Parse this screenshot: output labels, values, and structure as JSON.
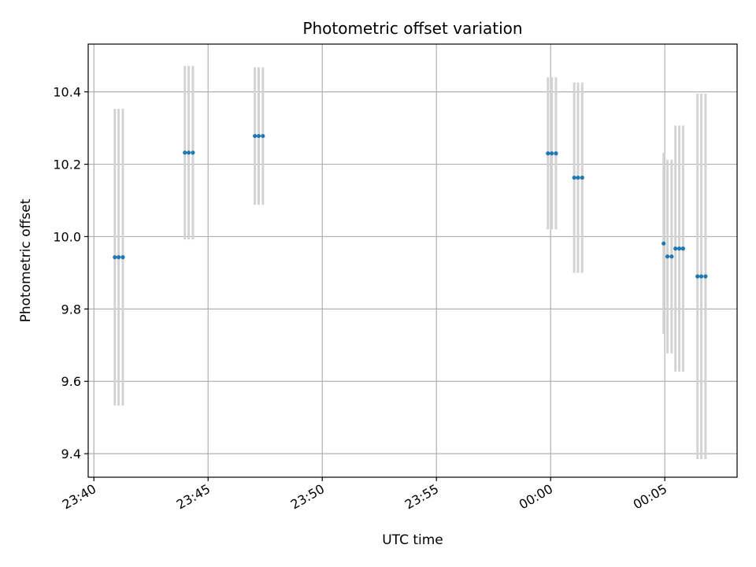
{
  "chart_data": {
    "type": "scatter",
    "title": "Photometric offset variation",
    "xlabel": "UTC time",
    "ylabel": "Photometric offset",
    "x_is_time": true,
    "xlim": [
      "23:39:45",
      "00:08:10"
    ],
    "ylim": [
      9.335,
      10.532
    ],
    "grid": true,
    "colors": {
      "point": "#1f77b4",
      "errorbar": "#d3d3d3",
      "grid": "#b0b0b0",
      "axes": "#000000"
    },
    "x_ticks": [
      {
        "time": "23:40:00",
        "label": "23:40"
      },
      {
        "time": "23:45:00",
        "label": "23:45"
      },
      {
        "time": "23:50:00",
        "label": "23:50"
      },
      {
        "time": "23:55:00",
        "label": "23:55"
      },
      {
        "time": "00:00:00",
        "label": "00:00"
      },
      {
        "time": "00:05:00",
        "label": "00:05"
      }
    ],
    "y_ticks": [
      {
        "value": 9.4,
        "label": "9.4"
      },
      {
        "value": 9.6,
        "label": "9.6"
      },
      {
        "value": 9.8,
        "label": "9.8"
      },
      {
        "value": 10.0,
        "label": "10.0"
      },
      {
        "value": 10.2,
        "label": "10.2"
      },
      {
        "value": 10.4,
        "label": "10.4"
      }
    ],
    "points": [
      {
        "t": "23:40:55",
        "y": 9.943,
        "err": 0.41
      },
      {
        "t": "23:41:05",
        "y": 9.943,
        "err": 0.41
      },
      {
        "t": "23:41:16",
        "y": 9.943,
        "err": 0.41
      },
      {
        "t": "23:43:59",
        "y": 10.232,
        "err": 0.24
      },
      {
        "t": "23:44:09",
        "y": 10.232,
        "err": 0.24
      },
      {
        "t": "23:44:20",
        "y": 10.232,
        "err": 0.24
      },
      {
        "t": "23:47:03",
        "y": 10.278,
        "err": 0.19
      },
      {
        "t": "23:47:13",
        "y": 10.278,
        "err": 0.19
      },
      {
        "t": "23:47:24",
        "y": 10.278,
        "err": 0.19
      },
      {
        "t": "23:59:53",
        "y": 10.23,
        "err": 0.21
      },
      {
        "t": "00:00:03",
        "y": 10.23,
        "err": 0.21
      },
      {
        "t": "00:00:14",
        "y": 10.23,
        "err": 0.21
      },
      {
        "t": "00:01:02",
        "y": 10.163,
        "err": 0.263
      },
      {
        "t": "00:01:12",
        "y": 10.163,
        "err": 0.263
      },
      {
        "t": "00:01:23",
        "y": 10.163,
        "err": 0.263
      },
      {
        "t": "00:04:57",
        "y": 9.981,
        "err": 0.25
      },
      {
        "t": "00:05:07",
        "y": 9.945,
        "err": 0.268
      },
      {
        "t": "00:05:18",
        "y": 9.945,
        "err": 0.268
      },
      {
        "t": "00:05:28",
        "y": 9.967,
        "err": 0.34
      },
      {
        "t": "00:05:38",
        "y": 9.967,
        "err": 0.34
      },
      {
        "t": "00:05:48",
        "y": 9.967,
        "err": 0.34
      },
      {
        "t": "00:06:26",
        "y": 9.89,
        "err": 0.505
      },
      {
        "t": "00:06:36",
        "y": 9.89,
        "err": 0.505
      },
      {
        "t": "00:06:47",
        "y": 9.89,
        "err": 0.505
      }
    ]
  }
}
